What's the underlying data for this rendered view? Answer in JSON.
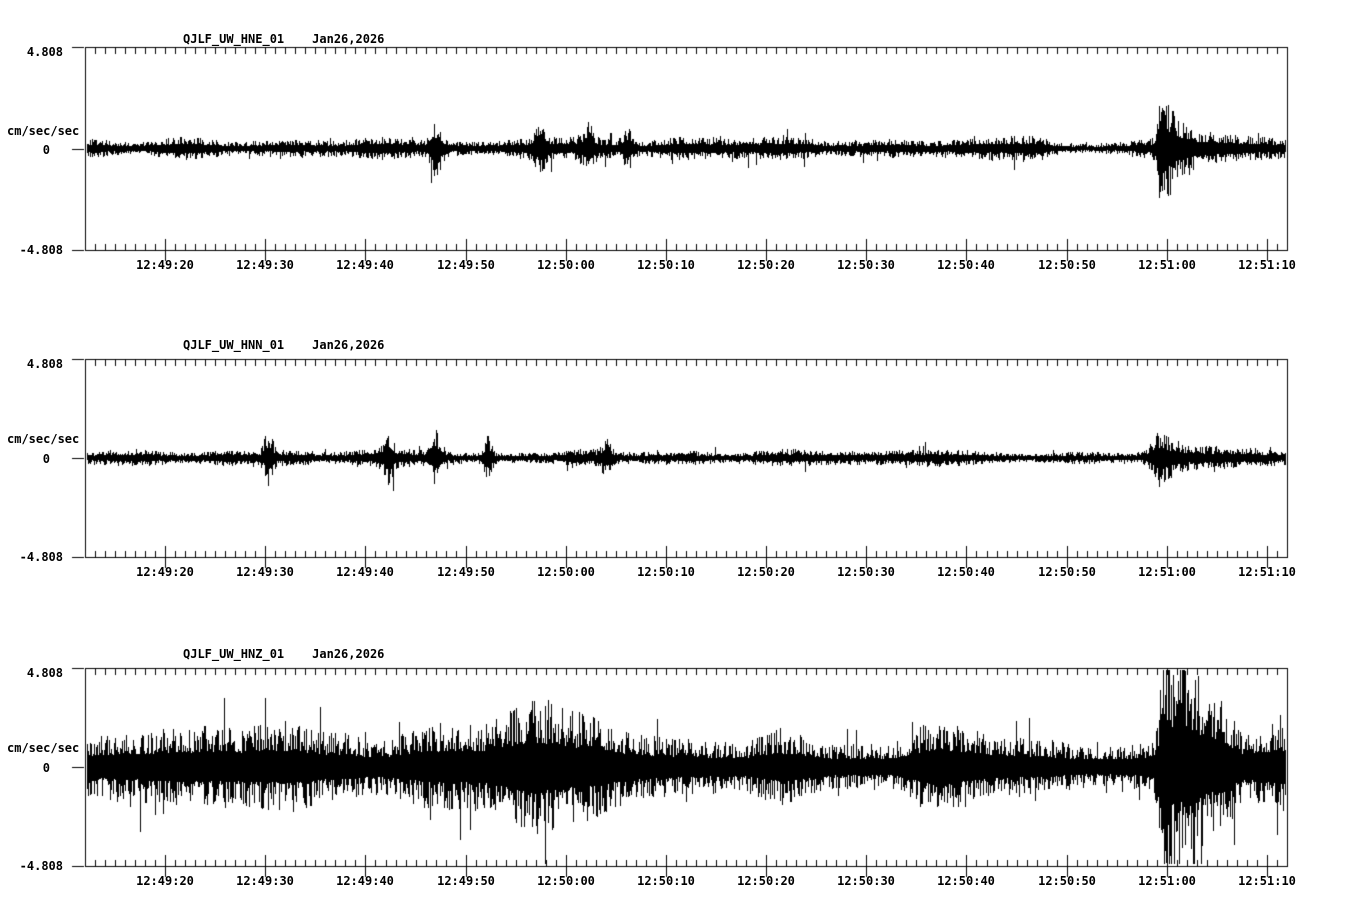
{
  "figure": {
    "background": "#ffffff",
    "ink": "#000000",
    "kind": "three-channel seismogram strip plot"
  },
  "x_axis": {
    "tick_labels": [
      "12:49:20",
      "12:49:30",
      "12:49:40",
      "12:49:50",
      "12:50:00",
      "12:50:10",
      "12:50:20",
      "12:50:30",
      "12:50:40",
      "12:50:50",
      "12:51:00",
      "12:51:10"
    ],
    "first_tick_offset_sec": 8,
    "major_interval_sec": 10,
    "minor_interval_sec": 1,
    "duration_sec": 120,
    "start_time": "12:49:12",
    "end_time": "12:51:12"
  },
  "chart_data": [
    {
      "type": "line",
      "title": "QJLF_UW_HNE_01",
      "date": "Jan26,2026",
      "ylabel": "cm/sec/sec",
      "y_ticks": [
        "4.808",
        "0",
        "-4.808"
      ],
      "ylim": [
        -4.808,
        4.808
      ],
      "grid": false,
      "legend": "none",
      "noise_amp": 0.33,
      "spike_prob": 0.05,
      "spike_gain": 1.8,
      "seed": 20261,
      "quiet": {
        "t0": 95,
        "t1": 106,
        "factor": 0.6
      },
      "bursts": [
        {
          "t": 35.0,
          "amp": 0.8,
          "w": 0.5
        },
        {
          "t": 45.5,
          "amp": 0.6,
          "w": 0.5
        },
        {
          "t": 50.2,
          "amp": 0.55,
          "w": 0.45
        },
        {
          "t": 54.2,
          "amp": 0.5,
          "w": 0.45
        }
      ],
      "event": {
        "t": 107.4,
        "amp": 2.1,
        "w": 0.3,
        "tail": 1.5,
        "time_approx": "12:50:59",
        "peak_units": 2.4
      }
    },
    {
      "type": "line",
      "title": "QJLF_UW_HNN_01",
      "date": "Jan26,2026",
      "ylabel": "cm/sec/sec",
      "y_ticks": [
        "4.808",
        "0",
        "-4.808"
      ],
      "ylim": [
        -4.808,
        4.808
      ],
      "grid": false,
      "legend": "none",
      "noise_amp": 0.3,
      "spike_prob": 0.05,
      "spike_gain": 1.8,
      "seed": 20262,
      "quiet": {
        "t0": 90,
        "t1": 106,
        "factor": 0.7
      },
      "bursts": [
        {
          "t": 18.3,
          "amp": 0.85,
          "w": 0.35
        },
        {
          "t": 30.3,
          "amp": 0.6,
          "w": 0.4
        },
        {
          "t": 35.0,
          "amp": 0.8,
          "w": 0.4
        },
        {
          "t": 40.2,
          "amp": 0.65,
          "w": 0.35
        },
        {
          "t": 52.0,
          "amp": 0.45,
          "w": 0.4
        }
      ],
      "event": {
        "t": 107.4,
        "amp": 0.85,
        "w": 0.7,
        "tail": 1.2,
        "time_approx": "12:50:59",
        "peak_units": 1.1
      }
    },
    {
      "type": "line",
      "title": "QJLF_UW_HNZ_01",
      "date": "Jan26,2026",
      "ylabel": "cm/sec/sec",
      "y_ticks": [
        "4.808",
        "0",
        "-4.808"
      ],
      "ylim": [
        -4.808,
        4.808
      ],
      "grid": false,
      "legend": "none",
      "noise_amp": 1.25,
      "spike_prob": 0.07,
      "spike_gain": 1.8,
      "seed": 20263,
      "quiet": {
        "t0": 88,
        "t1": 104,
        "factor": 0.82
      },
      "bursts": [
        {
          "t": 45.0,
          "amp": 0.8,
          "w": 9.0
        },
        {
          "t": 110.5,
          "amp": 1.5,
          "w": 0.9
        },
        {
          "t": 113.5,
          "amp": 1.2,
          "w": 0.9
        }
      ],
      "event": {
        "t": 107.6,
        "amp": 4.3,
        "w": 0.28,
        "tail": 1.2,
        "time_approx": "12:51:00",
        "peak_units": 4.7
      }
    }
  ]
}
